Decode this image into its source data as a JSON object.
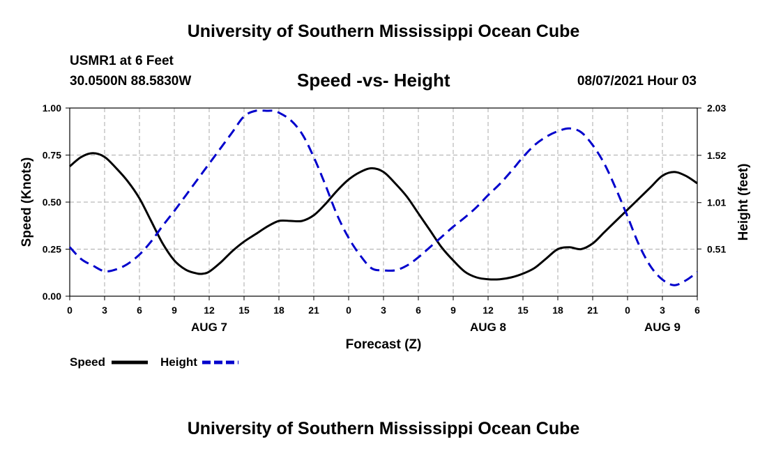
{
  "header": {
    "top_title": "University of Southern Mississippi Ocean Cube",
    "station": "USMR1 at 6 Feet",
    "coords": "30.0500N  88.5830W",
    "date_time": "08/07/2021 Hour 03",
    "bottom_title": "University of Southern Mississippi Ocean Cube"
  },
  "colors": {
    "speed": "#000000",
    "height": "#0000cc",
    "grid": "#aaaaaa"
  },
  "chart_data": {
    "type": "line",
    "title": "Speed -vs- Height",
    "xlabel": "Forecast (Z)",
    "ylabel": "Speed (Knots)",
    "y2label": "Height (feet)",
    "x_hours_range": [
      0,
      54
    ],
    "ylim": [
      0,
      1
    ],
    "y2lim": [
      0.001,
      2.03
    ],
    "x_ticks": [
      "0",
      "3",
      "6",
      "9",
      "12",
      "15",
      "18",
      "21",
      "0",
      "3",
      "6",
      "9",
      "12",
      "15",
      "18",
      "21",
      "0",
      "3",
      "6"
    ],
    "y_ticks": [
      "0.00",
      "0.25",
      "0.50",
      "0.75",
      "1.00"
    ],
    "y2_ticks": [
      {
        "value": 0.51,
        "label": "0.51"
      },
      {
        "value": 1.01,
        "label": "1.01"
      },
      {
        "value": 1.52,
        "label": "1.52"
      },
      {
        "value": 2.03,
        "label": "2.03"
      }
    ],
    "day_labels": [
      {
        "hour": 12,
        "label": "AUG 7"
      },
      {
        "hour": 36,
        "label": "AUG 8"
      },
      {
        "hour": 51,
        "label": "AUG 9"
      }
    ],
    "legend": [
      {
        "name": "Speed",
        "style": "solid"
      },
      {
        "name": "Height",
        "style": "dashed"
      }
    ],
    "legend_position": "bottom-left",
    "series": [
      {
        "name": "Speed",
        "axis": "left",
        "x": [
          0,
          1,
          2,
          3,
          4,
          5,
          6,
          7,
          8,
          9,
          10,
          11,
          11.5,
          12,
          13,
          14,
          15,
          16,
          17,
          18,
          19,
          20,
          21,
          22,
          23,
          24,
          25,
          26,
          27,
          28,
          29,
          30,
          31,
          32,
          33,
          34,
          35,
          36,
          37,
          38,
          39,
          40,
          41,
          42,
          43,
          44,
          45,
          46,
          47,
          48,
          49,
          50,
          51,
          52,
          53,
          54
        ],
        "values": [
          0.69,
          0.74,
          0.76,
          0.74,
          0.68,
          0.61,
          0.52,
          0.4,
          0.28,
          0.19,
          0.14,
          0.12,
          0.12,
          0.13,
          0.18,
          0.24,
          0.29,
          0.33,
          0.37,
          0.4,
          0.4,
          0.4,
          0.43,
          0.49,
          0.56,
          0.62,
          0.66,
          0.68,
          0.66,
          0.6,
          0.53,
          0.44,
          0.35,
          0.26,
          0.19,
          0.13,
          0.1,
          0.09,
          0.09,
          0.1,
          0.12,
          0.15,
          0.2,
          0.25,
          0.26,
          0.25,
          0.28,
          0.34,
          0.4,
          0.46,
          0.52,
          0.58,
          0.64,
          0.66,
          0.64,
          0.6
        ]
      },
      {
        "name": "Height",
        "axis": "right",
        "x": [
          0,
          1,
          2,
          3,
          4,
          5,
          6,
          7,
          8,
          9,
          10,
          11,
          12,
          13,
          14,
          15,
          16,
          17,
          17.5,
          18,
          19,
          20,
          21,
          22,
          23,
          24,
          25,
          26,
          27,
          28,
          29,
          30,
          31,
          32,
          33,
          34,
          35,
          36,
          37,
          38,
          39,
          40,
          41,
          42,
          43,
          44,
          45,
          46,
          47,
          48,
          49,
          50,
          51,
          52,
          53,
          54
        ],
        "values": [
          0.53,
          0.4,
          0.33,
          0.27,
          0.29,
          0.35,
          0.45,
          0.59,
          0.76,
          0.92,
          1.09,
          1.26,
          1.43,
          1.6,
          1.77,
          1.94,
          2.0,
          2.0,
          2.0,
          1.98,
          1.9,
          1.75,
          1.5,
          1.2,
          0.88,
          0.63,
          0.44,
          0.3,
          0.28,
          0.28,
          0.33,
          0.42,
          0.53,
          0.64,
          0.75,
          0.85,
          0.96,
          1.09,
          1.21,
          1.35,
          1.5,
          1.63,
          1.72,
          1.78,
          1.81,
          1.77,
          1.63,
          1.43,
          1.16,
          0.86,
          0.55,
          0.32,
          0.18,
          0.12,
          0.17,
          0.26
        ]
      }
    ]
  }
}
